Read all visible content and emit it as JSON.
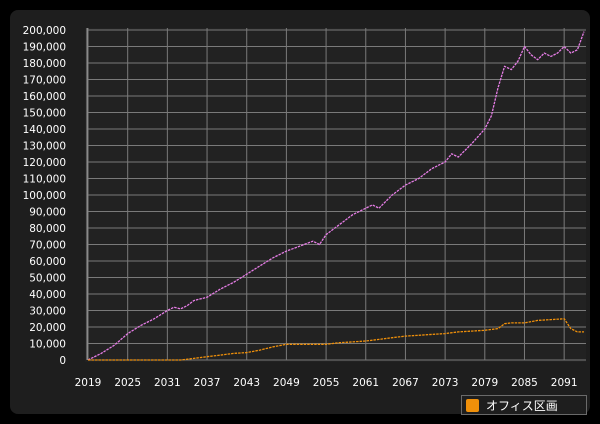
{
  "chart_data": {
    "type": "line",
    "x_ticks": [
      "2019",
      "2025",
      "2031",
      "2037",
      "2043",
      "2049",
      "2055",
      "2061",
      "2067",
      "2073",
      "2079",
      "2085",
      "2091"
    ],
    "y_ticks": [
      "0",
      "10,000",
      "20,000",
      "30,000",
      "40,000",
      "50,000",
      "60,000",
      "70,000",
      "80,000",
      "90,000",
      "100,000",
      "110,000",
      "120,000",
      "130,000",
      "140,000",
      "150,000",
      "160,000",
      "170,000",
      "180,000",
      "190,000",
      "200,000"
    ],
    "xlim": [
      2019,
      2094
    ],
    "ylim": [
      0,
      200000
    ],
    "grid": true,
    "legend_position": "bottom-right",
    "series": [
      {
        "name": "",
        "color": "#e67de6",
        "x": [
          2019,
          2021,
          2023,
          2025,
          2027,
          2029,
          2031,
          2032,
          2033,
          2034,
          2035,
          2036,
          2037,
          2039,
          2041,
          2043,
          2045,
          2047,
          2049,
          2051,
          2053,
          2054,
          2055,
          2057,
          2059,
          2061,
          2062,
          2063,
          2065,
          2067,
          2069,
          2071,
          2073,
          2074,
          2075,
          2077,
          2079,
          2080,
          2081,
          2082,
          2083,
          2084,
          2085,
          2086,
          2087,
          2088,
          2089,
          2090,
          2091,
          2092,
          2093,
          2094
        ],
        "values": [
          0,
          4000,
          9000,
          16000,
          21000,
          25000,
          30000,
          32000,
          31000,
          33000,
          36000,
          37000,
          38000,
          43000,
          47000,
          52000,
          57000,
          62000,
          66000,
          69000,
          72000,
          70000,
          76000,
          82000,
          88000,
          92000,
          94000,
          92000,
          100000,
          106000,
          110000,
          116000,
          120000,
          125000,
          123000,
          131000,
          140000,
          148000,
          165000,
          178000,
          176000,
          181000,
          190000,
          185000,
          182000,
          186000,
          184000,
          186000,
          190000,
          186000,
          188000,
          199000
        ]
      },
      {
        "name": "オフィス区画",
        "color": "#f0900a",
        "x": [
          2019,
          2032,
          2033,
          2035,
          2037,
          2039,
          2041,
          2043,
          2045,
          2047,
          2049,
          2051,
          2053,
          2055,
          2057,
          2059,
          2061,
          2063,
          2065,
          2067,
          2069,
          2071,
          2073,
          2075,
          2077,
          2079,
          2081,
          2082,
          2083,
          2084,
          2085,
          2087,
          2089,
          2091,
          2092,
          2093,
          2094
        ],
        "values": [
          0,
          0,
          0,
          1000,
          2000,
          3000,
          4000,
          4500,
          6000,
          8000,
          9500,
          9500,
          9500,
          9500,
          10500,
          11000,
          11500,
          12500,
          13500,
          14500,
          15000,
          15500,
          16000,
          17000,
          17500,
          18000,
          19000,
          22000,
          22500,
          22500,
          22500,
          24000,
          24500,
          25000,
          19000,
          17000,
          17000
        ]
      }
    ]
  }
}
